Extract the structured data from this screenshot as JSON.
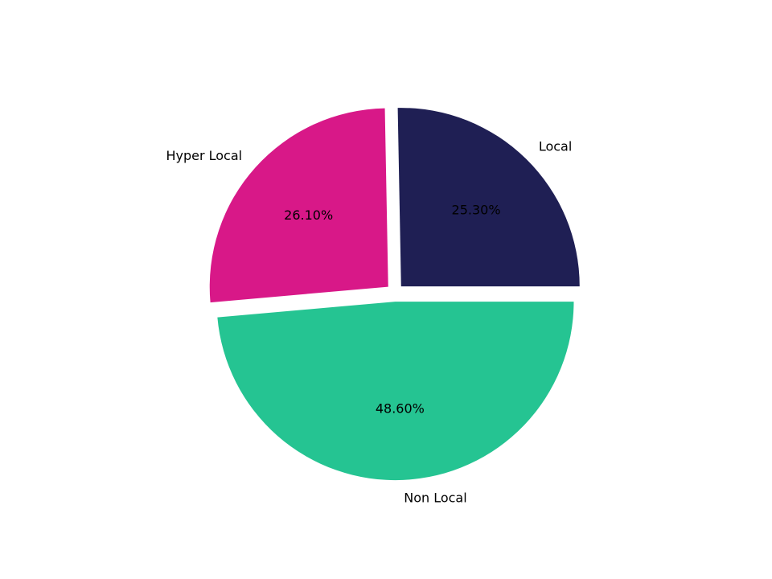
{
  "chart_data": {
    "type": "pie",
    "title": "",
    "labels": [
      "Local",
      "Hyper Local",
      "Non Local"
    ],
    "values": [
      25.3,
      26.1,
      48.6
    ],
    "pct_labels": [
      "25.30%",
      "26.10%",
      "48.60%"
    ],
    "colors": [
      "#1f1f54",
      "#d81888",
      "#25c492"
    ],
    "explode": [
      0.05,
      0.05,
      0.05
    ],
    "start_angle_deg": 0,
    "direction": "counterclockwise"
  }
}
